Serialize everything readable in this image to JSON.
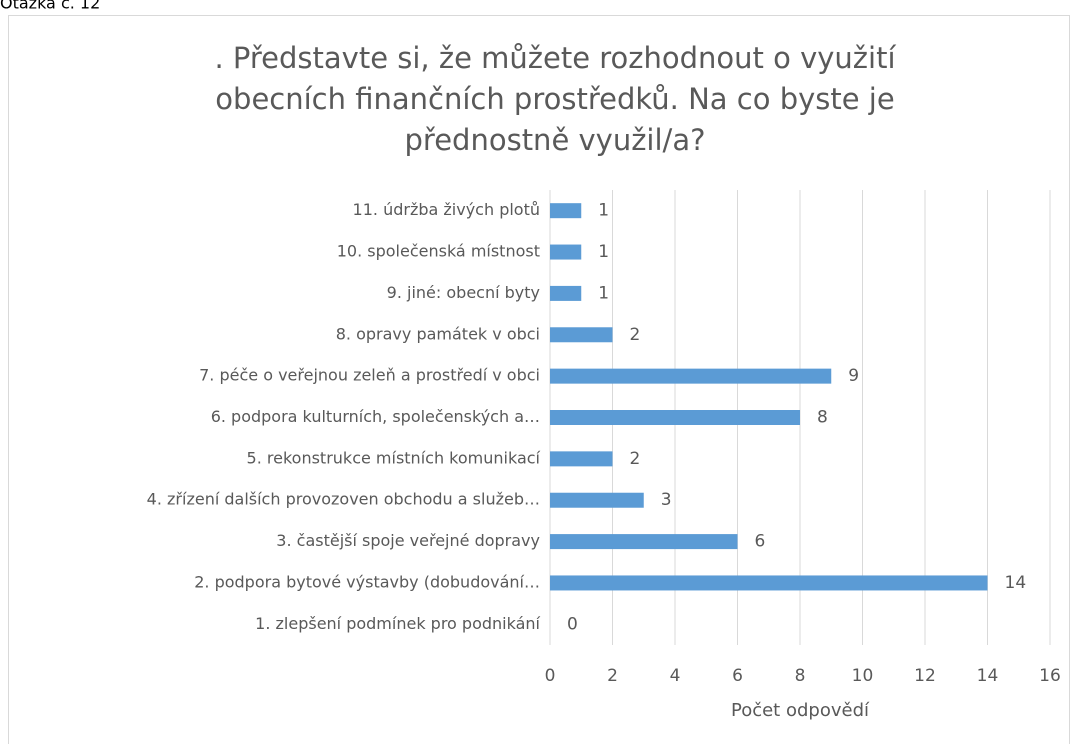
{
  "header": "Otázka č. 12",
  "chart_data": {
    "type": "barh",
    "title": [
      ". Představte si, že můžete rozhodnout o využití",
      "obecních finančních prostředků. Na co byste je",
      "přednostně využil/a?"
    ],
    "categories": [
      "1. zlepšení podmínek pro podnikání",
      "2. podpora bytové výstavby (dobudování…",
      "3. častější spoje veřejné dopravy",
      "4. zřízení dalších provozoven obchodu a služeb…",
      "5. rekonstrukce místních komunikací",
      "6. podpora kulturních, společenských a…",
      "7. péče o veřejnou zeleň a prostředí v obci",
      "8. opravy památek v obci",
      "9. jiné: obecní byty",
      "10. společenská místnost",
      "11. údržba živých plotů"
    ],
    "values": [
      0,
      14,
      6,
      3,
      2,
      8,
      9,
      2,
      1,
      1,
      1
    ],
    "color": "#5b9bd5",
    "xlabel": "Počet odpovědí",
    "xlim": [
      0,
      16
    ],
    "xticks": [
      0,
      2,
      4,
      6,
      8,
      10,
      12,
      14,
      16
    ],
    "grid": true
  }
}
